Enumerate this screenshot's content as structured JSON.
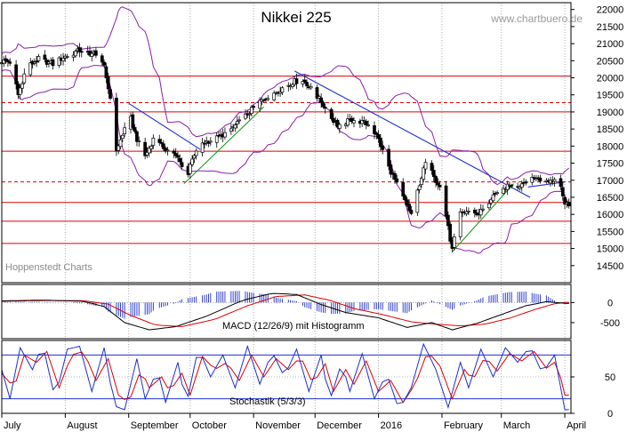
{
  "chart_data": [
    {
      "panel": "price",
      "type": "candlestick",
      "title": "Nikkei 225",
      "watermark": "www.chartbuero.de",
      "source_label": "Hoppenstedt Charts",
      "ylim": [
        14000,
        22200
      ],
      "y_ticks": [
        14500,
        15000,
        15500,
        16000,
        16500,
        17000,
        17500,
        18000,
        18500,
        19000,
        19500,
        20000,
        20500,
        21000,
        21500,
        22000
      ],
      "y_tick_labels": [
        "14500",
        "15000",
        "15500",
        "16000",
        "16500",
        "17000",
        "17500",
        "18000",
        "18500",
        "19000",
        "19500",
        "20000",
        "20500",
        "21000",
        "21500",
        "22000"
      ],
      "x_range_days": [
        0,
        278
      ],
      "x_labels": [
        {
          "label": "July",
          "day": 0
        },
        {
          "label": "August",
          "day": 31
        },
        {
          "label": "September",
          "day": 62
        },
        {
          "label": "October",
          "day": 92
        },
        {
          "label": "November",
          "day": 123
        },
        {
          "label": "December",
          "day": 153
        },
        {
          "label": "2016",
          "day": 184
        },
        {
          "label": "February",
          "day": 215
        },
        {
          "label": "March",
          "day": 244
        },
        {
          "label": "April",
          "day": 275
        }
      ],
      "close_anchors": [
        {
          "day": 0,
          "value": 20500
        },
        {
          "day": 5,
          "value": 20450
        },
        {
          "day": 8,
          "value": 19500
        },
        {
          "day": 12,
          "value": 20300
        },
        {
          "day": 18,
          "value": 20550
        },
        {
          "day": 25,
          "value": 20400
        },
        {
          "day": 30,
          "value": 20600
        },
        {
          "day": 38,
          "value": 20800
        },
        {
          "day": 45,
          "value": 20700
        },
        {
          "day": 50,
          "value": 20300
        },
        {
          "day": 54,
          "value": 19100
        },
        {
          "day": 56,
          "value": 17900
        },
        {
          "day": 59,
          "value": 18300
        },
        {
          "day": 62,
          "value": 19000
        },
        {
          "day": 66,
          "value": 18200
        },
        {
          "day": 70,
          "value": 17700
        },
        {
          "day": 74,
          "value": 18200
        },
        {
          "day": 78,
          "value": 18000
        },
        {
          "day": 83,
          "value": 17800
        },
        {
          "day": 87,
          "value": 17600
        },
        {
          "day": 90,
          "value": 17000
        },
        {
          "day": 93,
          "value": 17600
        },
        {
          "day": 98,
          "value": 18100
        },
        {
          "day": 104,
          "value": 18200
        },
        {
          "day": 110,
          "value": 18400
        },
        {
          "day": 116,
          "value": 18700
        },
        {
          "day": 121,
          "value": 19000
        },
        {
          "day": 126,
          "value": 19300
        },
        {
          "day": 131,
          "value": 19500
        },
        {
          "day": 137,
          "value": 19700
        },
        {
          "day": 143,
          "value": 19900
        },
        {
          "day": 148,
          "value": 19900
        },
        {
          "day": 152,
          "value": 19600
        },
        {
          "day": 156,
          "value": 19300
        },
        {
          "day": 160,
          "value": 18900
        },
        {
          "day": 164,
          "value": 18600
        },
        {
          "day": 168,
          "value": 18700
        },
        {
          "day": 172,
          "value": 18800
        },
        {
          "day": 176,
          "value": 18700
        },
        {
          "day": 180,
          "value": 18600
        },
        {
          "day": 184,
          "value": 18200
        },
        {
          "day": 188,
          "value": 17500
        },
        {
          "day": 192,
          "value": 17000
        },
        {
          "day": 196,
          "value": 16500
        },
        {
          "day": 200,
          "value": 16000
        },
        {
          "day": 204,
          "value": 16900
        },
        {
          "day": 208,
          "value": 17700
        },
        {
          "day": 212,
          "value": 17000
        },
        {
          "day": 215,
          "value": 16700
        },
        {
          "day": 218,
          "value": 15600
        },
        {
          "day": 220,
          "value": 14950
        },
        {
          "day": 223,
          "value": 16000
        },
        {
          "day": 228,
          "value": 16100
        },
        {
          "day": 232,
          "value": 16000
        },
        {
          "day": 236,
          "value": 16200
        },
        {
          "day": 240,
          "value": 16500
        },
        {
          "day": 244,
          "value": 16700
        },
        {
          "day": 248,
          "value": 16900
        },
        {
          "day": 252,
          "value": 16800
        },
        {
          "day": 256,
          "value": 17000
        },
        {
          "day": 260,
          "value": 17100
        },
        {
          "day": 264,
          "value": 16950
        },
        {
          "day": 268,
          "value": 17000
        },
        {
          "day": 271,
          "value": 17050
        },
        {
          "day": 273,
          "value": 16850
        },
        {
          "day": 275,
          "value": 16300
        }
      ],
      "horizontal_levels": [
        {
          "value": 20050,
          "style": "solid"
        },
        {
          "value": 19270,
          "style": "dashed"
        },
        {
          "value": 19000,
          "style": "solid"
        },
        {
          "value": 17850,
          "style": "solid"
        },
        {
          "value": 16950,
          "style": "dashed"
        },
        {
          "value": 16350,
          "style": "solid"
        },
        {
          "value": 15800,
          "style": "solid"
        },
        {
          "value": 15150,
          "style": "solid"
        }
      ],
      "trend_lines": [
        {
          "color": "blue",
          "points": [
            [
              62,
              19250
            ],
            [
              97,
              17900
            ]
          ]
        },
        {
          "color": "blue",
          "points": [
            [
              143,
              20200
            ],
            [
              258,
              16500
            ]
          ]
        },
        {
          "color": "blue",
          "points": [
            [
              257,
              16800
            ],
            [
              275,
              16950
            ]
          ]
        },
        {
          "color": "green",
          "points": [
            [
              89,
              16900
            ],
            [
              128,
              19150
            ]
          ]
        },
        {
          "color": "green",
          "points": [
            [
              220,
              14900
            ],
            [
              250,
              16900
            ]
          ]
        }
      ],
      "colors": {
        "candle": "#000000",
        "bands": "#8b1fa8",
        "levels": "#dd0000",
        "trend_blue": "#1c2fcc",
        "trend_green": "#1f9a1f"
      }
    },
    {
      "panel": "macd",
      "type": "line+histogram",
      "label": "MACD (12/26/9) mit Histogramm",
      "ylim": [
        -900,
        450
      ],
      "y_ticks": [
        0,
        -500
      ],
      "y_tick_labels": [
        "0",
        "-500"
      ],
      "macd_anchors": [
        {
          "day": 0,
          "value": 40
        },
        {
          "day": 20,
          "value": 60
        },
        {
          "day": 40,
          "value": 30
        },
        {
          "day": 50,
          "value": -100
        },
        {
          "day": 60,
          "value": -500
        },
        {
          "day": 72,
          "value": -680
        },
        {
          "day": 85,
          "value": -600
        },
        {
          "day": 100,
          "value": -340
        },
        {
          "day": 118,
          "value": 60
        },
        {
          "day": 132,
          "value": 230
        },
        {
          "day": 144,
          "value": 200
        },
        {
          "day": 156,
          "value": -50
        },
        {
          "day": 168,
          "value": -250
        },
        {
          "day": 184,
          "value": -380
        },
        {
          "day": 198,
          "value": -620
        },
        {
          "day": 210,
          "value": -500
        },
        {
          "day": 220,
          "value": -680
        },
        {
          "day": 232,
          "value": -520
        },
        {
          "day": 244,
          "value": -300
        },
        {
          "day": 256,
          "value": -80
        },
        {
          "day": 266,
          "value": 20
        },
        {
          "day": 275,
          "value": -20
        }
      ],
      "signal_anchors": [
        {
          "day": 0,
          "value": 30
        },
        {
          "day": 20,
          "value": 50
        },
        {
          "day": 40,
          "value": 45
        },
        {
          "day": 52,
          "value": -40
        },
        {
          "day": 62,
          "value": -300
        },
        {
          "day": 75,
          "value": -560
        },
        {
          "day": 88,
          "value": -600
        },
        {
          "day": 104,
          "value": -420
        },
        {
          "day": 120,
          "value": -80
        },
        {
          "day": 134,
          "value": 150
        },
        {
          "day": 148,
          "value": 190
        },
        {
          "day": 160,
          "value": 60
        },
        {
          "day": 172,
          "value": -150
        },
        {
          "day": 186,
          "value": -300
        },
        {
          "day": 200,
          "value": -480
        },
        {
          "day": 212,
          "value": -540
        },
        {
          "day": 224,
          "value": -580
        },
        {
          "day": 236,
          "value": -540
        },
        {
          "day": 248,
          "value": -390
        },
        {
          "day": 260,
          "value": -180
        },
        {
          "day": 270,
          "value": -30
        },
        {
          "day": 275,
          "value": 0
        }
      ],
      "colors": {
        "macd": "#000000",
        "signal": "#dd0000",
        "histogram": "#1c2fcc"
      }
    },
    {
      "panel": "stochastic",
      "type": "line",
      "label": "Stochastik (5/3/3)",
      "ylim": [
        0,
        100
      ],
      "y_ticks": [
        0,
        50
      ],
      "y_tick_labels": [
        "0",
        "50"
      ],
      "levels": [
        80,
        20
      ],
      "k_anchors": [
        {
          "day": 0,
          "value": 60
        },
        {
          "day": 4,
          "value": 20
        },
        {
          "day": 9,
          "value": 90
        },
        {
          "day": 15,
          "value": 60
        },
        {
          "day": 20,
          "value": 95
        },
        {
          "day": 26,
          "value": 20
        },
        {
          "day": 32,
          "value": 88
        },
        {
          "day": 38,
          "value": 92
        },
        {
          "day": 44,
          "value": 30
        },
        {
          "day": 50,
          "value": 90
        },
        {
          "day": 55,
          "value": 10
        },
        {
          "day": 60,
          "value": 5
        },
        {
          "day": 66,
          "value": 75
        },
        {
          "day": 70,
          "value": 20
        },
        {
          "day": 76,
          "value": 60
        },
        {
          "day": 80,
          "value": 15
        },
        {
          "day": 86,
          "value": 70
        },
        {
          "day": 90,
          "value": 10
        },
        {
          "day": 96,
          "value": 90
        },
        {
          "day": 102,
          "value": 50
        },
        {
          "day": 108,
          "value": 80
        },
        {
          "day": 114,
          "value": 35
        },
        {
          "day": 120,
          "value": 92
        },
        {
          "day": 126,
          "value": 40
        },
        {
          "day": 132,
          "value": 85
        },
        {
          "day": 138,
          "value": 50
        },
        {
          "day": 144,
          "value": 88
        },
        {
          "day": 150,
          "value": 30
        },
        {
          "day": 156,
          "value": 80
        },
        {
          "day": 160,
          "value": 15
        },
        {
          "day": 166,
          "value": 70
        },
        {
          "day": 170,
          "value": 30
        },
        {
          "day": 176,
          "value": 82
        },
        {
          "day": 182,
          "value": 20
        },
        {
          "day": 188,
          "value": 55
        },
        {
          "day": 194,
          "value": 5
        },
        {
          "day": 200,
          "value": 35
        },
        {
          "day": 206,
          "value": 95
        },
        {
          "day": 212,
          "value": 60
        },
        {
          "day": 218,
          "value": 8
        },
        {
          "day": 224,
          "value": 70
        },
        {
          "day": 228,
          "value": 35
        },
        {
          "day": 234,
          "value": 88
        },
        {
          "day": 240,
          "value": 50
        },
        {
          "day": 246,
          "value": 90
        },
        {
          "day": 252,
          "value": 70
        },
        {
          "day": 258,
          "value": 92
        },
        {
          "day": 264,
          "value": 55
        },
        {
          "day": 270,
          "value": 80
        },
        {
          "day": 275,
          "value": 5
        }
      ],
      "d_anchors": [
        {
          "day": 0,
          "value": 55
        },
        {
          "day": 6,
          "value": 35
        },
        {
          "day": 11,
          "value": 80
        },
        {
          "day": 17,
          "value": 70
        },
        {
          "day": 22,
          "value": 85
        },
        {
          "day": 28,
          "value": 35
        },
        {
          "day": 34,
          "value": 80
        },
        {
          "day": 40,
          "value": 85
        },
        {
          "day": 46,
          "value": 45
        },
        {
          "day": 52,
          "value": 75
        },
        {
          "day": 57,
          "value": 25
        },
        {
          "day": 62,
          "value": 15
        },
        {
          "day": 68,
          "value": 60
        },
        {
          "day": 72,
          "value": 35
        },
        {
          "day": 78,
          "value": 50
        },
        {
          "day": 82,
          "value": 30
        },
        {
          "day": 88,
          "value": 55
        },
        {
          "day": 92,
          "value": 25
        },
        {
          "day": 98,
          "value": 78
        },
        {
          "day": 104,
          "value": 60
        },
        {
          "day": 110,
          "value": 70
        },
        {
          "day": 116,
          "value": 45
        },
        {
          "day": 122,
          "value": 80
        },
        {
          "day": 128,
          "value": 50
        },
        {
          "day": 134,
          "value": 75
        },
        {
          "day": 140,
          "value": 60
        },
        {
          "day": 146,
          "value": 78
        },
        {
          "day": 152,
          "value": 40
        },
        {
          "day": 158,
          "value": 68
        },
        {
          "day": 162,
          "value": 30
        },
        {
          "day": 168,
          "value": 60
        },
        {
          "day": 172,
          "value": 40
        },
        {
          "day": 178,
          "value": 72
        },
        {
          "day": 184,
          "value": 30
        },
        {
          "day": 190,
          "value": 45
        },
        {
          "day": 196,
          "value": 15
        },
        {
          "day": 202,
          "value": 40
        },
        {
          "day": 208,
          "value": 85
        },
        {
          "day": 214,
          "value": 65
        },
        {
          "day": 220,
          "value": 20
        },
        {
          "day": 226,
          "value": 60
        },
        {
          "day": 230,
          "value": 45
        },
        {
          "day": 236,
          "value": 78
        },
        {
          "day": 242,
          "value": 58
        },
        {
          "day": 248,
          "value": 82
        },
        {
          "day": 254,
          "value": 72
        },
        {
          "day": 260,
          "value": 85
        },
        {
          "day": 266,
          "value": 62
        },
        {
          "day": 271,
          "value": 72
        },
        {
          "day": 275,
          "value": 25
        }
      ],
      "colors": {
        "k": "#1c2fcc",
        "d": "#dd0000",
        "levels": "#1c2fcc"
      }
    }
  ]
}
